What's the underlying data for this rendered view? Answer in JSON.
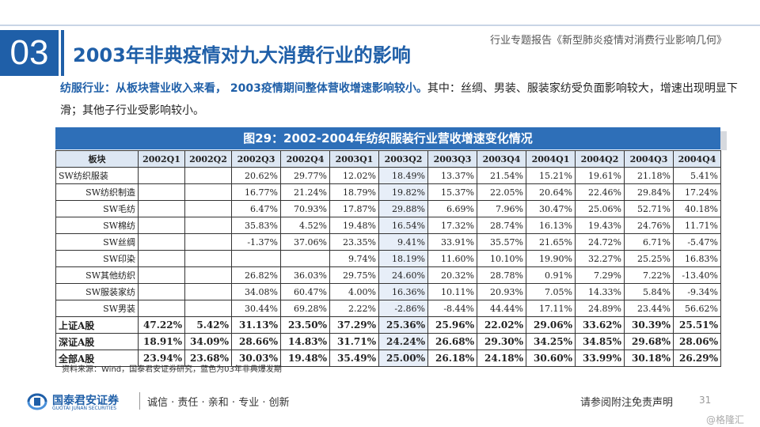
{
  "header": {
    "section_number": "03",
    "title": "2003年非典疫情对九大消费行业的影响",
    "report_title": "行业专题报告《新型肺炎疫情对消费行业影响几何》"
  },
  "intro": {
    "highlight": "纺服行业：从板块营业收入来看，  2003疫情期间整体营收增速影响较小。",
    "rest": "其中：丝绸、男装、服装家纺受负面影响较大，增速出现明显下滑；其他子行业受影响较小。"
  },
  "table": {
    "title": "图29：2002-2004年纺织服装行业营收增速变化情况",
    "headers": [
      "板块",
      "2002Q1",
      "2002Q2",
      "2002Q3",
      "2002Q4",
      "2003Q1",
      "2003Q2",
      "2003Q3",
      "2003Q4",
      "2004Q1",
      "2004Q2",
      "2004Q3",
      "2004Q4"
    ],
    "highlight_columns": [
      "2003Q2"
    ],
    "rows": [
      {
        "name": "SW纺织服装",
        "type": "sub0",
        "values": [
          "",
          "",
          "20.62%",
          "29.77%",
          "12.02%",
          "18.49%",
          "13.37%",
          "21.54%",
          "15.21%",
          "19.61%",
          "21.18%",
          "5.41%"
        ]
      },
      {
        "name": "SW纺织制造",
        "type": "sub",
        "values": [
          "",
          "",
          "16.77%",
          "21.24%",
          "18.79%",
          "19.82%",
          "15.37%",
          "22.05%",
          "20.64%",
          "22.46%",
          "29.84%",
          "17.24%"
        ]
      },
      {
        "name": "SW毛纺",
        "type": "sub",
        "values": [
          "",
          "",
          "6.47%",
          "70.93%",
          "17.87%",
          "29.88%",
          "6.69%",
          "7.96%",
          "30.47%",
          "25.06%",
          "52.71%",
          "40.18%"
        ]
      },
      {
        "name": "SW棉纺",
        "type": "sub",
        "values": [
          "",
          "",
          "35.83%",
          "4.52%",
          "19.48%",
          "16.54%",
          "17.32%",
          "28.74%",
          "16.13%",
          "19.43%",
          "24.76%",
          "11.71%"
        ]
      },
      {
        "name": "SW丝绸",
        "type": "sub",
        "values": [
          "",
          "",
          "-1.37%",
          "37.06%",
          "23.35%",
          "9.41%",
          "33.91%",
          "35.57%",
          "21.65%",
          "24.72%",
          "6.71%",
          "-5.47%"
        ]
      },
      {
        "name": "SW印染",
        "type": "sub",
        "values": [
          "",
          "",
          "",
          "",
          "9.74%",
          "18.19%",
          "11.60%",
          "10.10%",
          "19.90%",
          "32.27%",
          "25.25%",
          "16.83%"
        ]
      },
      {
        "name": "SW其他纺织",
        "type": "sub",
        "values": [
          "",
          "",
          "26.82%",
          "36.03%",
          "29.75%",
          "24.60%",
          "20.32%",
          "28.78%",
          "0.91%",
          "7.29%",
          "7.22%",
          "-13.40%"
        ]
      },
      {
        "name": "SW服装家纺",
        "type": "sub",
        "values": [
          "",
          "",
          "34.08%",
          "60.47%",
          "4.00%",
          "16.36%",
          "10.11%",
          "20.93%",
          "7.05%",
          "14.33%",
          "5.84%",
          "-9.34%"
        ]
      },
      {
        "name": "SW男装",
        "type": "sub",
        "values": [
          "",
          "",
          "30.44%",
          "69.28%",
          "2.22%",
          "-2.86%",
          "-8.44%",
          "44.44%",
          "17.11%",
          "24.89%",
          "23.44%",
          "56.62%"
        ]
      },
      {
        "name": "上证A股",
        "type": "bold",
        "values": [
          "47.22%",
          "5.42%",
          "31.13%",
          "23.50%",
          "37.29%",
          "25.36%",
          "25.96%",
          "22.02%",
          "29.06%",
          "33.62%",
          "30.39%",
          "25.51%"
        ]
      },
      {
        "name": "深证A股",
        "type": "bold",
        "values": [
          "18.91%",
          "34.09%",
          "28.66%",
          "14.83%",
          "31.71%",
          "24.24%",
          "26.68%",
          "29.30%",
          "34.25%",
          "34.85%",
          "29.68%",
          "28.06%"
        ]
      },
      {
        "name": "全部A股",
        "type": "bold",
        "values": [
          "23.94%",
          "23.68%",
          "30.03%",
          "19.48%",
          "35.49%",
          "25.00%",
          "26.18%",
          "24.18%",
          "30.60%",
          "33.99%",
          "30.18%",
          "26.29%"
        ]
      }
    ]
  },
  "source": "资料来源：Wind，国泰君安证券研究，蓝色为03年非典爆发期",
  "footer": {
    "logo_cn": "国泰君安证券",
    "logo_en": "GUOTAI JUNAN SECURITIES",
    "motto": "诚信 · 责任 · 亲和 · 专业 · 创新",
    "disclaimer": "请参阅附注免责声明",
    "page_number": "31",
    "watermark": "@格隆汇"
  },
  "colors": {
    "brand": "#1f5fa8",
    "table_title_bg": "#2e6fb8",
    "header_bg": "#dde7f3",
    "highlight_bg": "#e7eef8"
  },
  "icons": {
    "logo": "guotai-junan-logo-icon"
  }
}
